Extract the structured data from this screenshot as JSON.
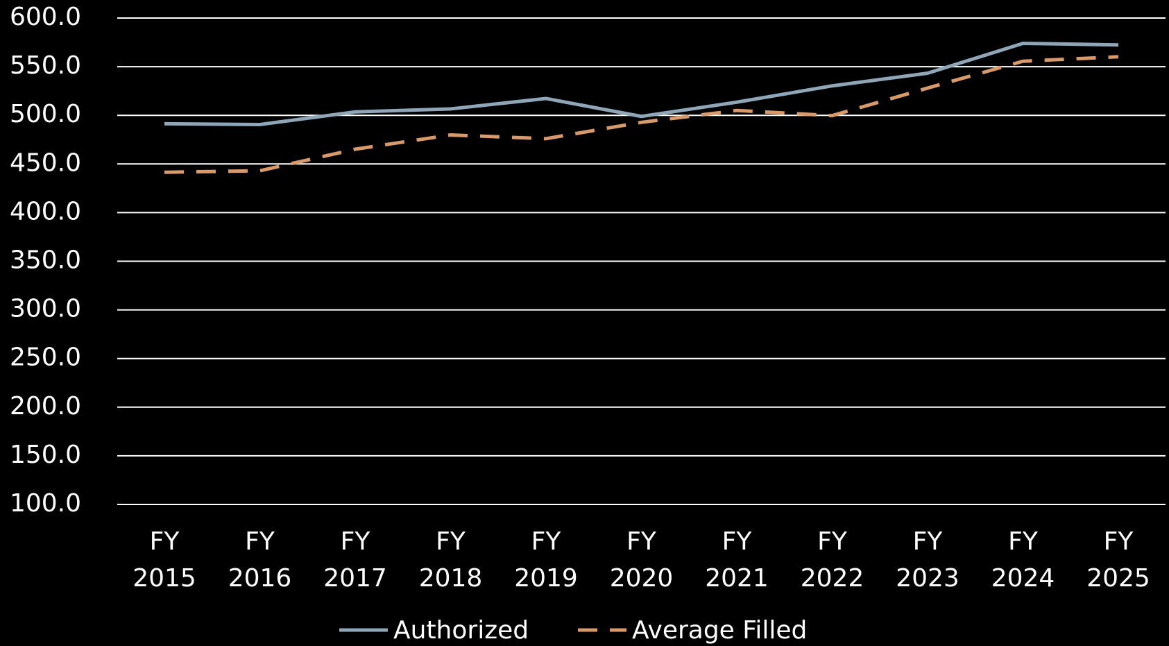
{
  "chart_data": {
    "type": "line",
    "categories": [
      "FY 2015",
      "FY 2016",
      "FY 2017",
      "FY 2018",
      "FY 2019",
      "FY 2020",
      "FY 2021",
      "FY 2022",
      "FY 2023",
      "FY 2024",
      "FY 2025"
    ],
    "series": [
      {
        "name": "Authorized",
        "color": "#8fa5b8",
        "dash": false,
        "values": [
          491.3,
          490.5,
          503.5,
          506.6,
          517.3,
          498.9,
          513.5,
          530.3,
          543.3,
          574.0,
          572.4
        ]
      },
      {
        "name": "Average Filled",
        "color": "#d89a6a",
        "dash": true,
        "values": [
          441.5,
          443.0,
          465.2,
          479.8,
          476.0,
          492.8,
          505.0,
          499.7,
          528.0,
          555.6,
          560.2
        ]
      }
    ],
    "ylim": [
      100,
      600
    ],
    "yticks": [
      {
        "value": 100,
        "label": "100.0"
      },
      {
        "value": 150,
        "label": "150.0"
      },
      {
        "value": 200,
        "label": "200.0"
      },
      {
        "value": 250,
        "label": "250.0"
      },
      {
        "value": 300,
        "label": "300.0"
      },
      {
        "value": 350,
        "label": "350.0"
      },
      {
        "value": 400,
        "label": "400.0"
      },
      {
        "value": 450,
        "label": "450.0"
      },
      {
        "value": 500,
        "label": "500.0"
      },
      {
        "value": 550,
        "label": "550.0"
      },
      {
        "value": 600,
        "label": "600.0"
      }
    ],
    "grid": true,
    "legend": "bottom"
  }
}
